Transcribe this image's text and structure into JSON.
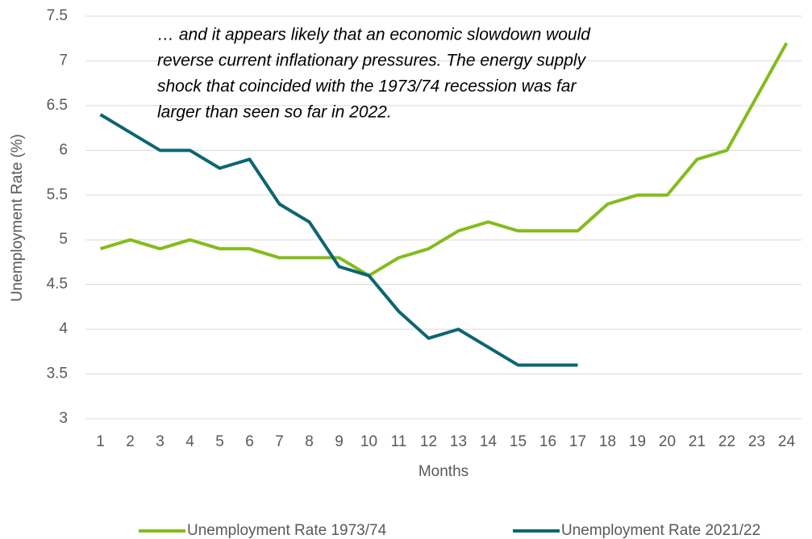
{
  "chart_data": {
    "type": "line",
    "x_label": "Months",
    "y_label": "Unemployment Rate (%)",
    "annotation": [
      "… and it appears likely that an economic slowdown would",
      "reverse current inflationary pressures.  The energy supply",
      "shock that coincided with the 1973/74 recession was far",
      "larger than seen so far in 2022."
    ],
    "categories": [
      "1",
      "2",
      "3",
      "4",
      "5",
      "6",
      "7",
      "8",
      "9",
      "10",
      "11",
      "12",
      "13",
      "14",
      "15",
      "16",
      "17",
      "18",
      "19",
      "20",
      "21",
      "22",
      "23",
      "24"
    ],
    "series": [
      {
        "name": "Unemployment Rate 1973/74",
        "color": "#84bc1c",
        "values": [
          4.9,
          5.0,
          4.9,
          5.0,
          4.9,
          4.9,
          4.8,
          4.8,
          4.8,
          4.6,
          4.8,
          4.9,
          5.1,
          5.2,
          5.1,
          5.1,
          5.1,
          5.4,
          5.5,
          5.5,
          5.9,
          6.0,
          6.6,
          7.2
        ]
      },
      {
        "name": "Unemployment Rate 2021/22",
        "color": "#0b6671",
        "values": [
          6.4,
          6.2,
          6.0,
          6.0,
          5.8,
          5.9,
          5.4,
          5.2,
          4.7,
          4.6,
          4.2,
          3.9,
          4.0,
          3.8,
          3.6,
          3.6,
          3.6,
          null,
          null,
          null,
          null,
          null,
          null,
          null
        ]
      }
    ],
    "ylim": [
      3,
      7.5
    ],
    "yticks": [
      3,
      3.5,
      4,
      4.5,
      5,
      5.5,
      6,
      6.5,
      7,
      7.5
    ],
    "grid": true
  }
}
